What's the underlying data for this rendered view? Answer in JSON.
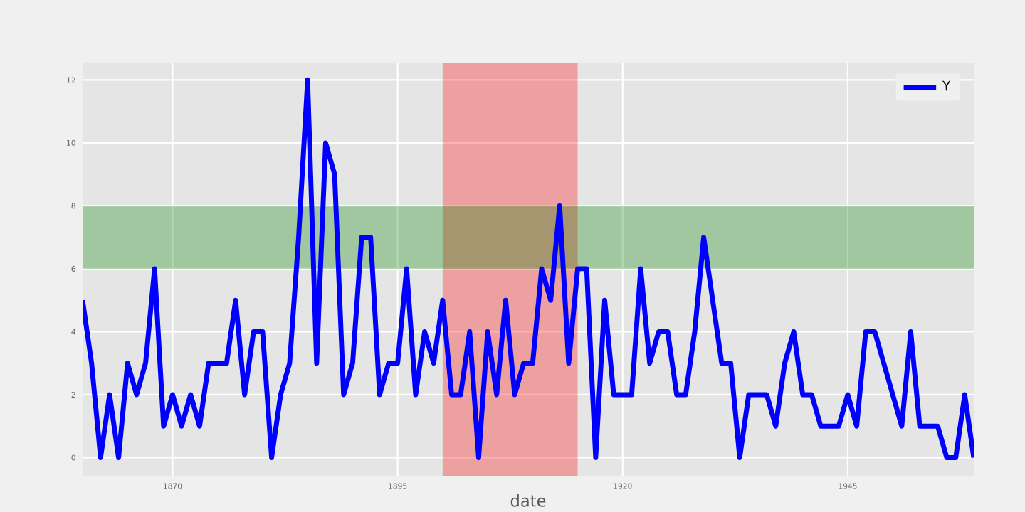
{
  "chart_data": {
    "type": "line",
    "xlabel": "date",
    "x": [
      "1860",
      "1861",
      "1862",
      "1863",
      "1864",
      "1865",
      "1866",
      "1867",
      "1868",
      "1869",
      "1870",
      "1871",
      "1872",
      "1873",
      "1874",
      "1875",
      "1876",
      "1877",
      "1878",
      "1879",
      "1880",
      "1881",
      "1882",
      "1883",
      "1884",
      "1885",
      "1886",
      "1887",
      "1888",
      "1889",
      "1890",
      "1891",
      "1892",
      "1893",
      "1894",
      "1895",
      "1896",
      "1897",
      "1898",
      "1899",
      "1900",
      "1901",
      "1902",
      "1903",
      "1904",
      "1905",
      "1906",
      "1907",
      "1908",
      "1909",
      "1910",
      "1911",
      "1912",
      "1913",
      "1914",
      "1915",
      "1916",
      "1917",
      "1918",
      "1919",
      "1920",
      "1921",
      "1922",
      "1923",
      "1924",
      "1925",
      "1926",
      "1927",
      "1928",
      "1929",
      "1930",
      "1931",
      "1932",
      "1933",
      "1934",
      "1935",
      "1936",
      "1937",
      "1938",
      "1939",
      "1940",
      "1941",
      "1942",
      "1943",
      "1944",
      "1945",
      "1946",
      "1947",
      "1948",
      "1949",
      "1950",
      "1951",
      "1952",
      "1953",
      "1954",
      "1955",
      "1956",
      "1957",
      "1958",
      "1959"
    ],
    "series": [
      {
        "name": "Y",
        "color": "#0000ff",
        "values": [
          5,
          3,
          0,
          2,
          0,
          3,
          2,
          3,
          6,
          1,
          2,
          1,
          2,
          1,
          3,
          3,
          3,
          5,
          2,
          4,
          4,
          0,
          2,
          3,
          7,
          12,
          3,
          10,
          9,
          2,
          3,
          7,
          7,
          2,
          3,
          3,
          6,
          2,
          4,
          3,
          5,
          2,
          2,
          4,
          0,
          4,
          2,
          5,
          2,
          3,
          3,
          6,
          5,
          8,
          3,
          6,
          6,
          0,
          5,
          2,
          2,
          2,
          6,
          3,
          4,
          4,
          2,
          2,
          4,
          7,
          5,
          3,
          3,
          0,
          2,
          2,
          2,
          1,
          3,
          4,
          2,
          2,
          1,
          1,
          1,
          2,
          1,
          4,
          4,
          3,
          2,
          1,
          4,
          1,
          1,
          1,
          0,
          0,
          2,
          0
        ]
      }
    ],
    "xlim": [
      "1860",
      "1959"
    ],
    "xticks": [
      "1870",
      "1895",
      "1920",
      "1945"
    ],
    "ylim": [
      -0.6,
      12.55
    ],
    "yticks": [
      0,
      2,
      4,
      6,
      8,
      10,
      12
    ],
    "bands": [
      {
        "axis": "x",
        "from": "1900",
        "to": "1915",
        "color": "#ff0000"
      },
      {
        "axis": "y",
        "from": 6,
        "to": 8,
        "color": "#008000"
      }
    ],
    "grid": true,
    "legend": "top right",
    "line_style": "solid",
    "marker": "none"
  }
}
